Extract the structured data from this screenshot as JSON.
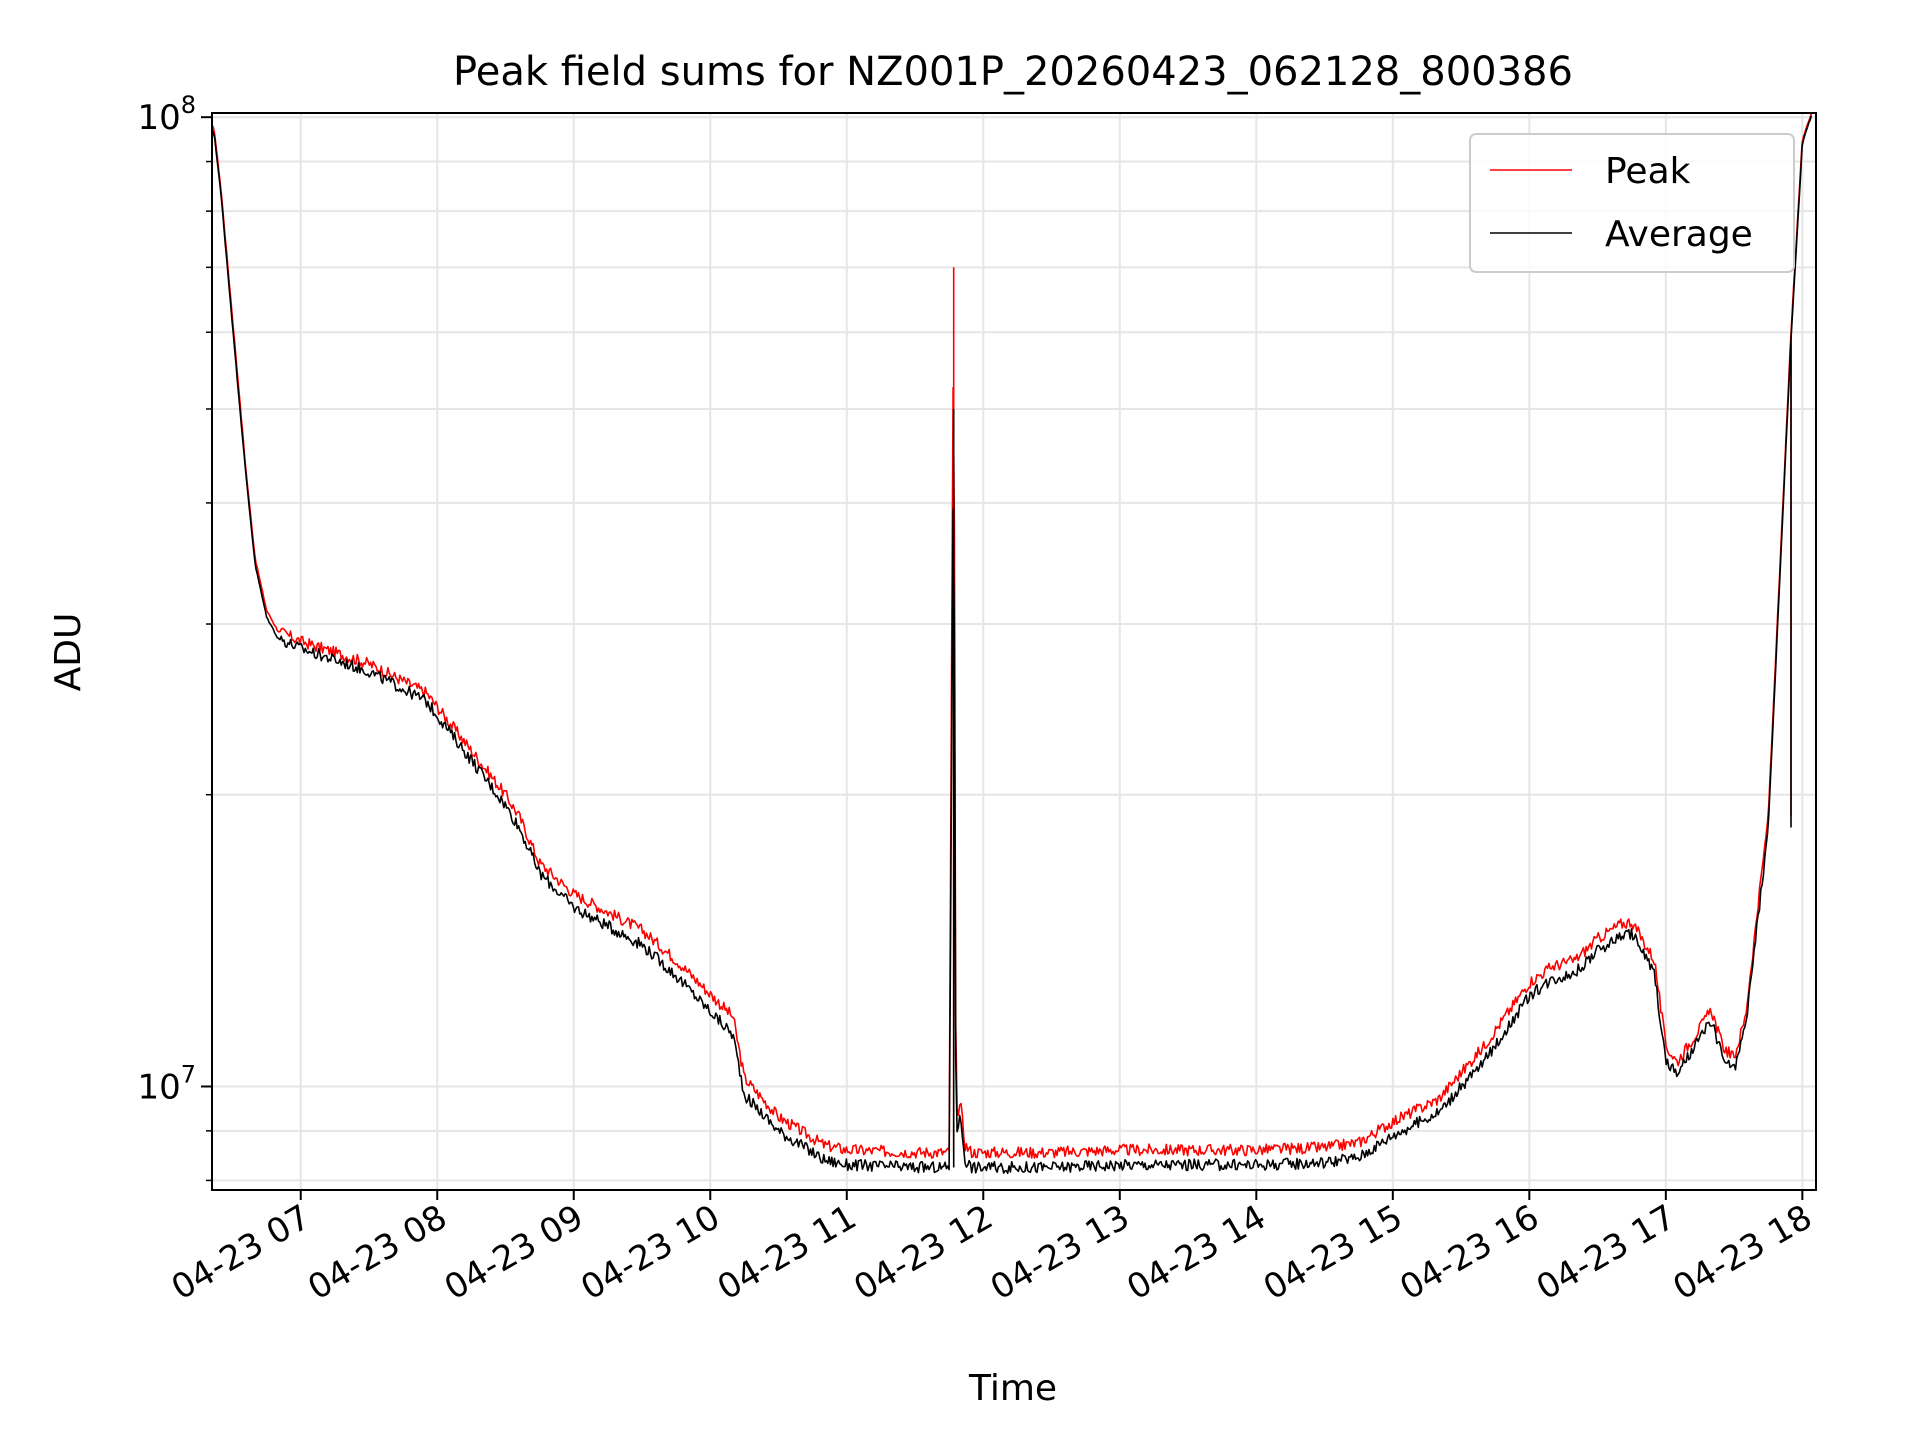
{
  "chart_data": {
    "type": "line",
    "title": "Peak field sums for NZ001P_20260423_062128_800386",
    "xlabel": "Time",
    "ylabel": "ADU",
    "y_scale": "log",
    "ylim": [
      7820000,
      101000000
    ],
    "xlim": [
      "2026-04-23 06:21",
      "2026-04-23 18:06"
    ],
    "grid": true,
    "legend_position": "top-right",
    "x_tick_labels": [
      "04-23 07",
      "04-23 08",
      "04-23 09",
      "04-23 10",
      "04-23 11",
      "04-23 12",
      "04-23 13",
      "04-23 14",
      "04-23 15",
      "04-23 16",
      "04-23 17",
      "04-23 18"
    ],
    "x_tick_times": [
      "2026-04-23 07:00",
      "2026-04-23 08:00",
      "2026-04-23 09:00",
      "2026-04-23 10:00",
      "2026-04-23 11:00",
      "2026-04-23 12:00",
      "2026-04-23 13:00",
      "2026-04-23 14:00",
      "2026-04-23 15:00",
      "2026-04-23 16:00",
      "2026-04-23 17:00",
      "2026-04-23 18:00"
    ],
    "y_major_ticks": [
      {
        "value": 10000000,
        "base": "10",
        "exp": "7"
      },
      {
        "value": 100000000,
        "base": "10",
        "exp": "8"
      }
    ],
    "y_minor_ticks": [
      8000000,
      9000000,
      20000000,
      30000000,
      40000000,
      50000000,
      60000000,
      70000000,
      80000000,
      90000000
    ],
    "series": [
      {
        "name": "Peak",
        "color": "#ff0000",
        "x": [
          "2026-04-23 06:21",
          "2026-04-23 06:22",
          "2026-04-23 06:25",
          "2026-04-23 06:28",
          "2026-04-23 06:32",
          "2026-04-23 06:36",
          "2026-04-23 06:40",
          "2026-04-23 06:45",
          "2026-04-23 06:50",
          "2026-04-23 07:00",
          "2026-04-23 07:30",
          "2026-04-23 07:55",
          "2026-04-23 08:10",
          "2026-04-23 08:30",
          "2026-04-23 08:36",
          "2026-04-23 08:45",
          "2026-04-23 09:00",
          "2026-04-23 09:30",
          "2026-04-23 09:45",
          "2026-04-23 10:10",
          "2026-04-23 10:15",
          "2026-04-23 10:30",
          "2026-04-23 10:50",
          "2026-04-23 11:00",
          "2026-04-23 11:30",
          "2026-04-23 11:45",
          "2026-04-23 11:47",
          "2026-04-23 11:48",
          "2026-04-23 11:50",
          "2026-04-23 11:52",
          "2026-04-23 11:55",
          "2026-04-23 12:05",
          "2026-04-23 12:30",
          "2026-04-23 13:00",
          "2026-04-23 13:30",
          "2026-04-23 14:00",
          "2026-04-23 14:30",
          "2026-04-23 14:45",
          "2026-04-23 15:00",
          "2026-04-23 15:20",
          "2026-04-23 15:40",
          "2026-04-23 16:00",
          "2026-04-23 16:10",
          "2026-04-23 16:20",
          "2026-04-23 16:30",
          "2026-04-23 16:40",
          "2026-04-23 16:45",
          "2026-04-23 16:55",
          "2026-04-23 17:00",
          "2026-04-23 17:05",
          "2026-04-23 17:15",
          "2026-04-23 17:20",
          "2026-04-23 17:25",
          "2026-04-23 17:30",
          "2026-04-23 17:35",
          "2026-04-23 17:45",
          "2026-04-23 17:55",
          "2026-04-23 18:00",
          "2026-04-23 18:04"
        ],
        "values": [
          98000000,
          97000000,
          84000000,
          70000000,
          55000000,
          43000000,
          35000000,
          31000000,
          29500000,
          28800000,
          27300000,
          25500000,
          23000000,
          20000000,
          19000000,
          17000000,
          15800000,
          14500000,
          13500000,
          11800000,
          10200000,
          9300000,
          8700000,
          8600000,
          8550000,
          8550000,
          70000000,
          9300000,
          9600000,
          8700000,
          8550000,
          8550000,
          8550000,
          8600000,
          8600000,
          8600000,
          8650000,
          8750000,
          9200000,
          9700000,
          11000000,
          12800000,
          13300000,
          13500000,
          14200000,
          14700000,
          14800000,
          13500000,
          11000000,
          10600000,
          11500000,
          12000000,
          11000000,
          10700000,
          11800000,
          19000000,
          60000000,
          95000000,
          101000000
        ]
      },
      {
        "name": "Average",
        "color": "#000000",
        "x": [
          "2026-04-23 06:21",
          "2026-04-23 06:22",
          "2026-04-23 06:25",
          "2026-04-23 06:28",
          "2026-04-23 06:32",
          "2026-04-23 06:36",
          "2026-04-23 06:40",
          "2026-04-23 06:45",
          "2026-04-23 06:50",
          "2026-04-23 07:00",
          "2026-04-23 07:30",
          "2026-04-23 07:55",
          "2026-04-23 08:10",
          "2026-04-23 08:30",
          "2026-04-23 08:36",
          "2026-04-23 08:45",
          "2026-04-23 09:00",
          "2026-04-23 09:30",
          "2026-04-23 09:45",
          "2026-04-23 10:10",
          "2026-04-23 10:15",
          "2026-04-23 10:30",
          "2026-04-23 10:50",
          "2026-04-23 11:00",
          "2026-04-23 11:30",
          "2026-04-23 11:45",
          "2026-04-23 11:47",
          "2026-04-23 11:48",
          "2026-04-23 11:50",
          "2026-04-23 11:52",
          "2026-04-23 11:55",
          "2026-04-23 12:05",
          "2026-04-23 12:30",
          "2026-04-23 13:00",
          "2026-04-23 13:30",
          "2026-04-23 14:00",
          "2026-04-23 14:30",
          "2026-04-23 14:45",
          "2026-04-23 15:00",
          "2026-04-23 15:20",
          "2026-04-23 15:40",
          "2026-04-23 16:00",
          "2026-04-23 16:10",
          "2026-04-23 16:20",
          "2026-04-23 16:30",
          "2026-04-23 16:40",
          "2026-04-23 16:45",
          "2026-04-23 16:55",
          "2026-04-23 17:00",
          "2026-04-23 17:05",
          "2026-04-23 17:15",
          "2026-04-23 17:20",
          "2026-04-23 17:25",
          "2026-04-23 17:30",
          "2026-04-23 17:35",
          "2026-04-23 17:45",
          "2026-04-23 17:55",
          "2026-04-23 18:00",
          "2026-04-23 18:04"
        ],
        "values": [
          97000000,
          96000000,
          83000000,
          69000000,
          54000000,
          42500000,
          34500000,
          30500000,
          29000000,
          28300000,
          26800000,
          25000000,
          22500000,
          19500000,
          18500000,
          16600000,
          15300000,
          14000000,
          13000000,
          11300000,
          9800000,
          9000000,
          8400000,
          8300000,
          8250000,
          8250000,
          50000000,
          9000000,
          9300000,
          8400000,
          8250000,
          8250000,
          8250000,
          8300000,
          8300000,
          8300000,
          8350000,
          8450000,
          8900000,
          9400000,
          10600000,
          12400000,
          12900000,
          13100000,
          13800000,
          14300000,
          14400000,
          13100000,
          10600000,
          10300000,
          11200000,
          11700000,
          10700000,
          10400000,
          11500000,
          18500000,
          59000000,
          94000000,
          100500000
        ]
      }
    ]
  }
}
